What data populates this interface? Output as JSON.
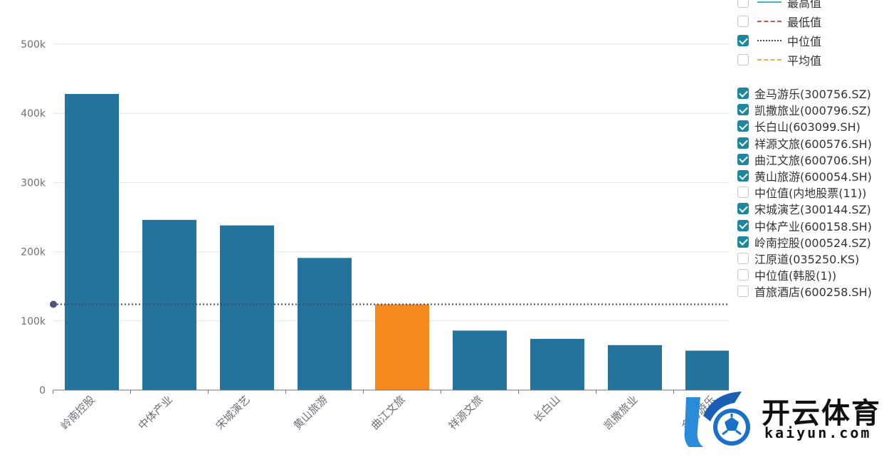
{
  "chart_data": {
    "type": "bar",
    "categories": [
      "岭南控股",
      "中体产业",
      "宋城演艺",
      "黄山旅游",
      "曲江文旅",
      "祥源文旅",
      "长白山",
      "凯撒旅业",
      "金马游乐"
    ],
    "values": [
      428000,
      246000,
      238000,
      191000,
      124000,
      86000,
      74000,
      65000,
      57000
    ],
    "highlight_index": 4,
    "colors": {
      "bar": "#23739c",
      "highlight": "#f5891e",
      "median_line": "#3d4a6b",
      "grid": "#e6e6e6",
      "axis": "#6e7079"
    },
    "yticks": [
      "0",
      "100k",
      "200k",
      "300k",
      "400k",
      "500k"
    ],
    "ytick_values": [
      0,
      100000,
      200000,
      300000,
      400000,
      500000
    ],
    "ylim": [
      0,
      500000
    ],
    "median": 124000,
    "grid": true,
    "xlabel": "",
    "ylabel": ""
  },
  "legend": {
    "lines": [
      {
        "label": "最高值",
        "checked": false,
        "style": "solid",
        "color": "#4ab0c8"
      },
      {
        "label": "最低值",
        "checked": false,
        "style": "dashdot",
        "color": "#d9534f"
      },
      {
        "label": "中位值",
        "checked": true,
        "style": "dotted",
        "color": "#3d4a6b"
      },
      {
        "label": "平均值",
        "checked": false,
        "style": "dashed",
        "color": "#f0ad4e"
      }
    ],
    "series": [
      {
        "label": "金马游乐(300756.SZ)",
        "checked": true
      },
      {
        "label": "凯撒旅业(000796.SZ)",
        "checked": true
      },
      {
        "label": "长白山(603099.SH)",
        "checked": true
      },
      {
        "label": "祥源文旅(600576.SH)",
        "checked": true
      },
      {
        "label": "曲江文旅(600706.SH)",
        "checked": true
      },
      {
        "label": "黄山旅游(600054.SH)",
        "checked": true
      },
      {
        "label": "中位值(内地股票(11))",
        "checked": false
      },
      {
        "label": "宋城演艺(300144.SZ)",
        "checked": true
      },
      {
        "label": "中体产业(600158.SH)",
        "checked": true
      },
      {
        "label": "岭南控股(000524.SZ)",
        "checked": true
      },
      {
        "label": "江原道(035250.KS)",
        "checked": false
      },
      {
        "label": "中位值(韩股(1))",
        "checked": false
      },
      {
        "label": "首旅酒店(600258.SH)",
        "checked": false
      }
    ]
  },
  "watermark": {
    "title": "开云体育",
    "subtitle": "kaiyun.com",
    "icon": "kaiyun-logo-icon"
  }
}
